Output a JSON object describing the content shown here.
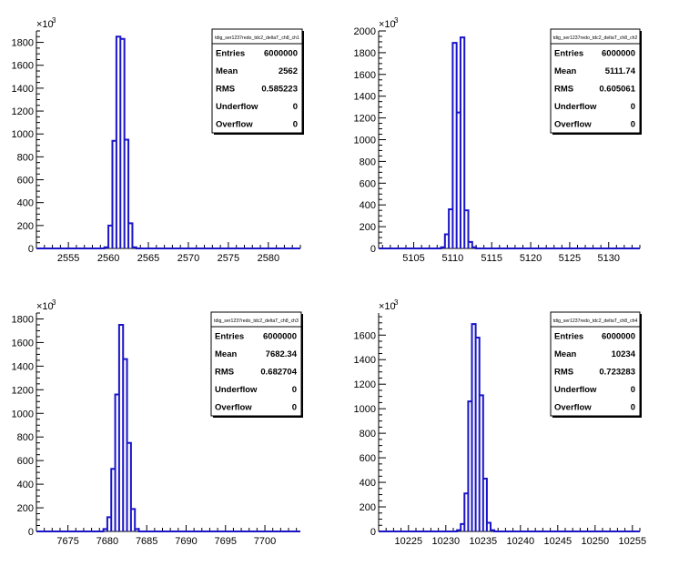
{
  "chart_data": [
    {
      "type": "histogram",
      "exponent_label": "×10",
      "exponent_power": "3",
      "xlim": [
        2551,
        2584
      ],
      "ylim": [
        0,
        1900
      ],
      "x_ticks": [
        2555,
        2560,
        2565,
        2570,
        2575,
        2580
      ],
      "y_ticks": [
        0,
        200,
        400,
        600,
        800,
        1000,
        1200,
        1400,
        1600,
        1800
      ],
      "bin_width": 0.5,
      "bins": [
        {
          "x": 2559.5,
          "y": 10
        },
        {
          "x": 2560.0,
          "y": 200
        },
        {
          "x": 2560.5,
          "y": 940
        },
        {
          "x": 2561.0,
          "y": 1850
        },
        {
          "x": 2561.5,
          "y": 1830
        },
        {
          "x": 2562.0,
          "y": 950
        },
        {
          "x": 2562.5,
          "y": 220
        },
        {
          "x": 2563.0,
          "y": 10
        }
      ],
      "stats": {
        "title": "tdig_ser1237redo_tdc2_deltaT_ch8_ch1",
        "rows": [
          {
            "label": "Entries",
            "value": "6000000"
          },
          {
            "label": "Mean",
            "value": "2562"
          },
          {
            "label": "RMS",
            "value": "0.585223"
          },
          {
            "label": "Underflow",
            "value": "0"
          },
          {
            "label": "Overflow",
            "value": "0"
          }
        ]
      }
    },
    {
      "type": "histogram",
      "exponent_label": "×10",
      "exponent_power": "3",
      "xlim": [
        5100.5,
        5134
      ],
      "ylim": [
        0,
        2000
      ],
      "x_ticks": [
        5105,
        5110,
        5115,
        5120,
        5125,
        5130
      ],
      "y_ticks": [
        0,
        200,
        400,
        600,
        800,
        1000,
        1200,
        1400,
        1600,
        1800,
        2000
      ],
      "bin_width": 0.5,
      "bins": [
        {
          "x": 5108.5,
          "y": 10
        },
        {
          "x": 5109.0,
          "y": 130
        },
        {
          "x": 5109.5,
          "y": 360
        },
        {
          "x": 5110.0,
          "y": 1890
        },
        {
          "x": 5110.5,
          "y": 1250
        },
        {
          "x": 5111.0,
          "y": 1940
        },
        {
          "x": 5111.5,
          "y": 350
        },
        {
          "x": 5112.0,
          "y": 60
        },
        {
          "x": 5112.5,
          "y": 10
        }
      ],
      "stats": {
        "title": "tdig_ser1237redo_tdc2_deltaT_ch8_ch2",
        "rows": [
          {
            "label": "Entries",
            "value": "6000000"
          },
          {
            "label": "Mean",
            "value": "5111.74"
          },
          {
            "label": "RMS",
            "value": "0.605061"
          },
          {
            "label": "Underflow",
            "value": "0"
          },
          {
            "label": "Overflow",
            "value": "0"
          }
        ]
      }
    },
    {
      "type": "histogram",
      "exponent_label": "×10",
      "exponent_power": "3",
      "xlim": [
        7671,
        7704.5
      ],
      "ylim": [
        0,
        1850
      ],
      "x_ticks": [
        7675,
        7680,
        7685,
        7690,
        7695,
        7700
      ],
      "y_ticks": [
        0,
        200,
        400,
        600,
        800,
        1000,
        1200,
        1400,
        1600,
        1800
      ],
      "bin_width": 0.5,
      "bins": [
        {
          "x": 7679.5,
          "y": 20
        },
        {
          "x": 7680.0,
          "y": 120
        },
        {
          "x": 7680.5,
          "y": 530
        },
        {
          "x": 7681.0,
          "y": 1160
        },
        {
          "x": 7681.5,
          "y": 1750
        },
        {
          "x": 7682.0,
          "y": 1460
        },
        {
          "x": 7682.5,
          "y": 750
        },
        {
          "x": 7683.0,
          "y": 190
        },
        {
          "x": 7683.5,
          "y": 20
        }
      ],
      "stats": {
        "title": "tdig_ser1237redo_tdc2_deltaT_ch8_ch3",
        "rows": [
          {
            "label": "Entries",
            "value": "6000000"
          },
          {
            "label": "Mean",
            "value": "7682.34"
          },
          {
            "label": "RMS",
            "value": "0.682704"
          },
          {
            "label": "Underflow",
            "value": "0"
          },
          {
            "label": "Overflow",
            "value": "0"
          }
        ]
      }
    },
    {
      "type": "histogram",
      "exponent_label": "×10",
      "exponent_power": "3",
      "xlim": [
        10221,
        10256
      ],
      "ylim": [
        0,
        1780
      ],
      "x_ticks": [
        10225,
        10230,
        10235,
        10240,
        10245,
        10250,
        10255
      ],
      "y_ticks": [
        0,
        200,
        400,
        600,
        800,
        1000,
        1200,
        1400,
        1600
      ],
      "bin_width": 0.5,
      "bins": [
        {
          "x": 10231.5,
          "y": 10
        },
        {
          "x": 10232.0,
          "y": 60
        },
        {
          "x": 10232.5,
          "y": 310
        },
        {
          "x": 10233.0,
          "y": 1060
        },
        {
          "x": 10233.5,
          "y": 1690
        },
        {
          "x": 10234.0,
          "y": 1580
        },
        {
          "x": 10234.5,
          "y": 1110
        },
        {
          "x": 10235.0,
          "y": 430
        },
        {
          "x": 10235.5,
          "y": 70
        },
        {
          "x": 10236.0,
          "y": 10
        }
      ],
      "stats": {
        "title": "tdig_ser1237redo_tdc2_deltaT_ch8_ch4",
        "rows": [
          {
            "label": "Entries",
            "value": "6000000"
          },
          {
            "label": "Mean",
            "value": "10234"
          },
          {
            "label": "RMS",
            "value": "0.723283"
          },
          {
            "label": "Underflow",
            "value": "0"
          },
          {
            "label": "Overflow",
            "value": "0"
          }
        ]
      }
    }
  ],
  "colors": {
    "histogram_line": "#1a14c8",
    "axis": "#000000",
    "stats_border": "#000000",
    "background": "#ffffff"
  }
}
